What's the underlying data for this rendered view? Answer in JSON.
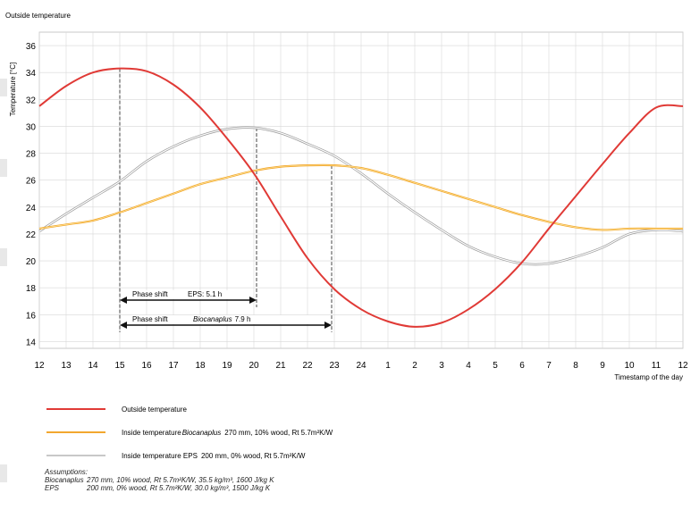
{
  "chart_data": {
    "type": "line",
    "title": "Outside temperature",
    "ylabel": "Temperature [°C]",
    "xlabel": "Timestamp of the day",
    "ylim": [
      13.5,
      37
    ],
    "y_ticks": [
      14,
      16,
      18,
      20,
      22,
      24,
      26,
      28,
      30,
      32,
      34,
      36
    ],
    "x_tick_labels": [
      "12",
      "13",
      "14",
      "15",
      "16",
      "17",
      "18",
      "19",
      "20",
      "21",
      "22",
      "23",
      "24",
      "1",
      "2",
      "3",
      "4",
      "5",
      "6",
      "7",
      "8",
      "9",
      "10",
      "11",
      "12"
    ],
    "grid": true,
    "series": [
      {
        "name": "Outside temperature",
        "color": "#e03a36",
        "x": [
          0,
          1,
          2,
          3,
          4,
          5,
          6,
          7,
          8,
          9,
          10,
          11,
          12,
          13,
          14,
          15,
          16,
          17,
          18,
          19,
          20,
          21,
          22,
          23,
          24
        ],
        "y": [
          31.5,
          33.0,
          34.0,
          34.3,
          34.1,
          33.1,
          31.4,
          29.1,
          26.5,
          23.3,
          20.2,
          17.9,
          16.4,
          15.5,
          15.1,
          15.4,
          16.4,
          17.9,
          19.9,
          22.4,
          24.8,
          27.2,
          29.5,
          31.4,
          31.5
        ]
      },
      {
        "name": "Inside temperature",
        "name_italic": "Biocanaplus",
        "name_rest": "270 mm, 10% wood, Rt 5.7m²K/W",
        "color": "#f2a72f",
        "x": [
          0,
          1,
          2,
          3,
          4,
          5,
          6,
          7,
          8,
          9,
          10,
          11,
          12,
          13,
          14,
          15,
          16,
          17,
          18,
          19,
          20,
          21,
          22,
          23,
          24
        ],
        "y": [
          22.4,
          22.7,
          23.0,
          23.6,
          24.3,
          25.0,
          25.7,
          26.2,
          26.7,
          27.0,
          27.1,
          27.1,
          26.9,
          26.4,
          25.8,
          25.2,
          24.6,
          24.0,
          23.4,
          22.9,
          22.5,
          22.3,
          22.4,
          22.4,
          22.4
        ]
      },
      {
        "name": "Inside temperature EPS",
        "name_rest": "200 mm, 0% wood, Rt 5.7m²K/W",
        "color": "#c8c8c8",
        "x": [
          0,
          1,
          2,
          3,
          4,
          5,
          6,
          7,
          8,
          9,
          10,
          11,
          12,
          13,
          14,
          15,
          16,
          17,
          18,
          19,
          20,
          21,
          22,
          23,
          24
        ],
        "y": [
          22.2,
          23.5,
          24.7,
          25.9,
          27.4,
          28.5,
          29.3,
          29.8,
          29.9,
          29.5,
          28.7,
          27.8,
          26.5,
          25.0,
          23.6,
          22.3,
          21.1,
          20.3,
          19.8,
          19.8,
          20.3,
          21.0,
          22.0,
          22.3,
          22.2
        ]
      }
    ],
    "annotations": [
      {
        "label": "Phase shift",
        "value_text": "EPS: 5.1 h",
        "x_start": 3,
        "x_end": 8.1
      },
      {
        "label": "Phase shift",
        "value_italic": "Biocanaplus",
        "value_text": "7.9 h",
        "x_start": 3,
        "x_end": 10.9
      }
    ],
    "vlines": [
      {
        "x": 3,
        "y_top": 34.3
      },
      {
        "x": 8.1,
        "y_top": 29.9
      },
      {
        "x": 10.9,
        "y_top": 27.1
      }
    ]
  },
  "assumptions": {
    "title": "Assumptions:",
    "rows": [
      {
        "key": "Biocanaplus",
        "text": "270 mm, 10% wood, Rt 5.7m²K/W, 35.5 kg/m³, 1600 J/kg K"
      },
      {
        "key": "EPS",
        "text": "200 mm, 0% wood, Rt 5.7m²K/W, 30.0 kg/m³, 1500 J/kg K"
      }
    ]
  }
}
